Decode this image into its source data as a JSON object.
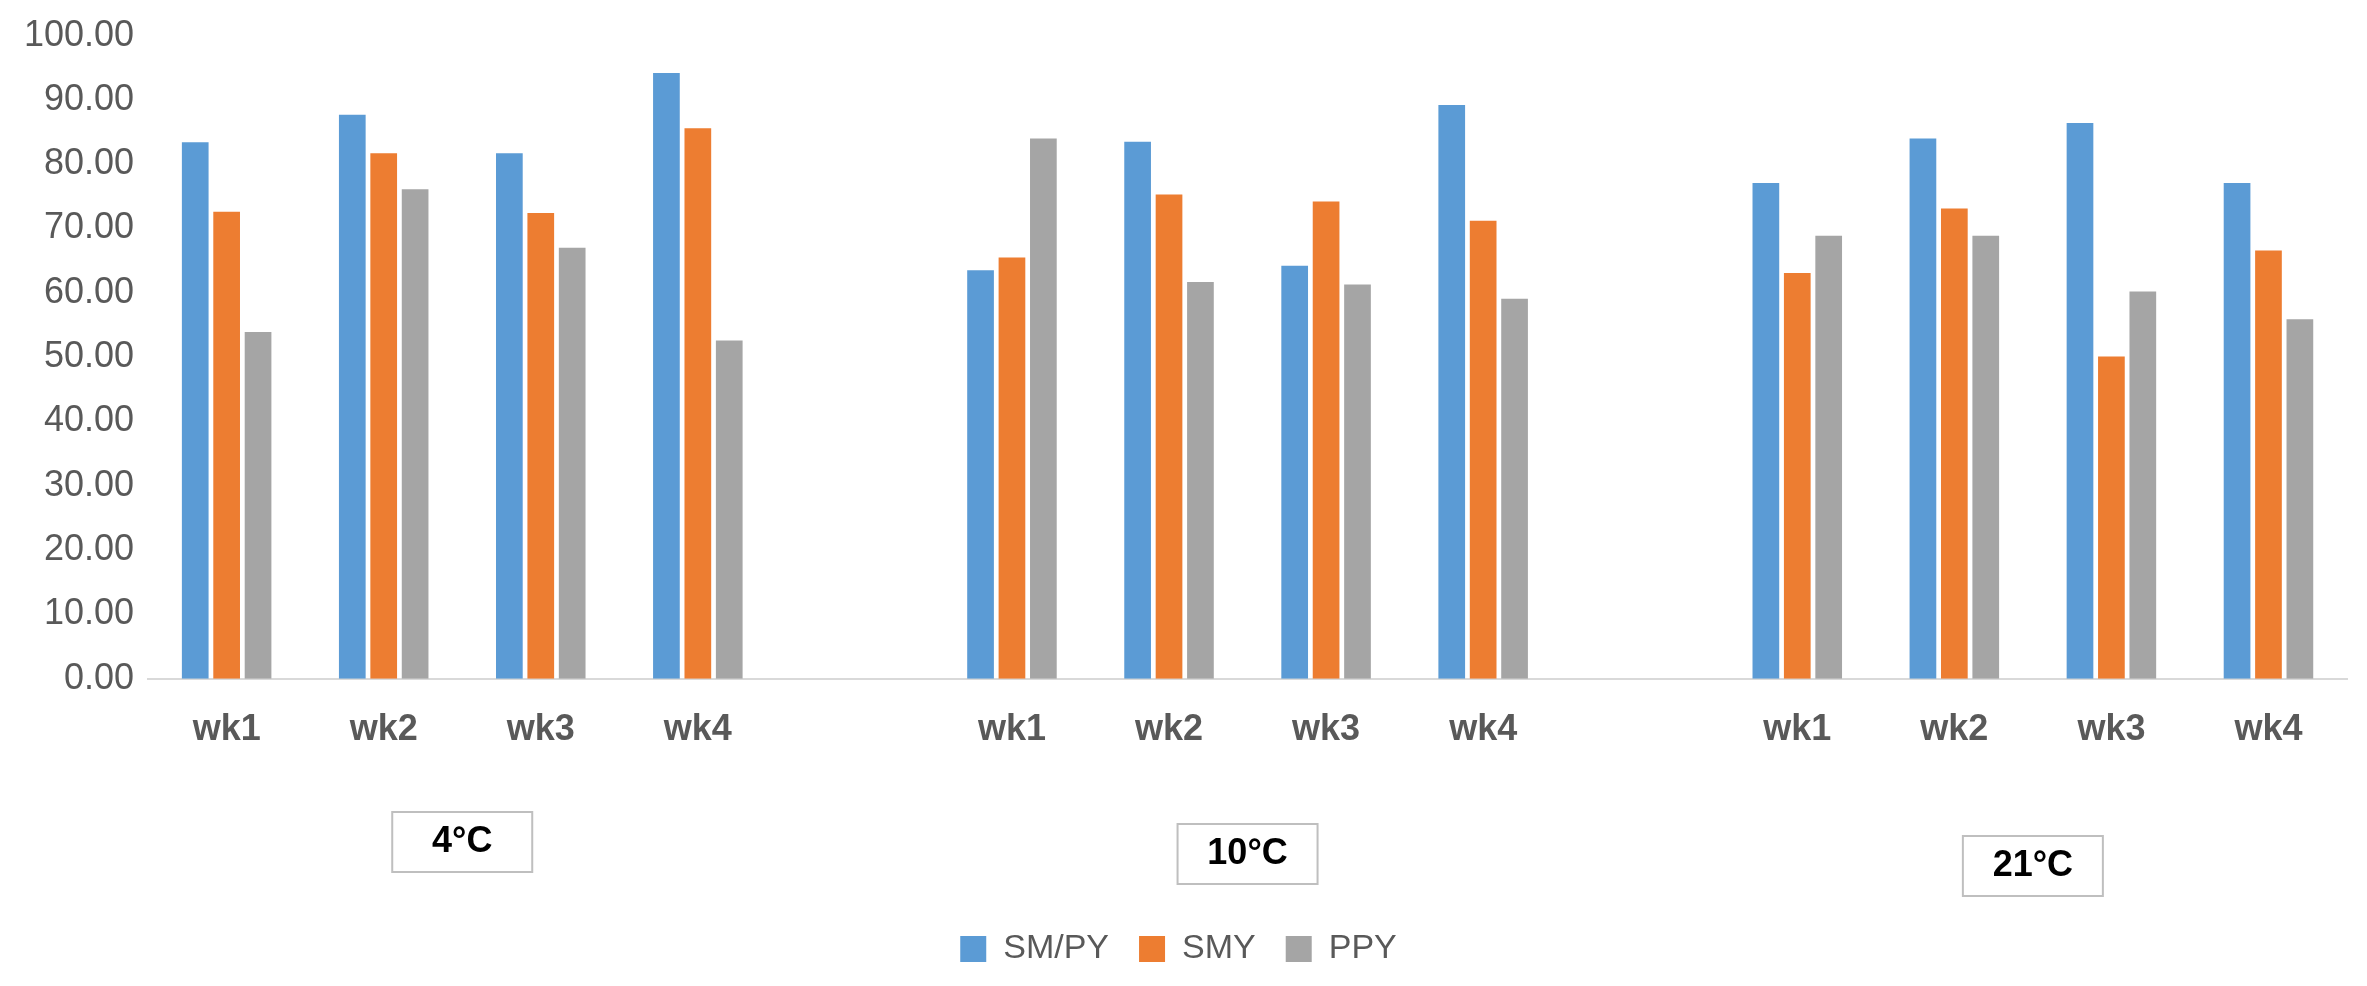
{
  "chart_data": {
    "type": "bar",
    "categories": [
      "wk1",
      "wk2",
      "wk3",
      "wk4",
      null,
      "wk1",
      "wk2",
      "wk3",
      "wk4",
      null,
      "wk1",
      "wk2",
      "wk3",
      "wk4"
    ],
    "series": [
      {
        "name": "SM/PY",
        "color": "#5b9bd5",
        "values": [
          83.4,
          87.7,
          81.7,
          94.2,
          null,
          63.5,
          83.5,
          64.2,
          89.2,
          null,
          77.1,
          84.0,
          86.4,
          77.1
        ]
      },
      {
        "name": "SMY",
        "color": "#ed7d31",
        "values": [
          72.6,
          81.7,
          72.4,
          85.6,
          null,
          65.5,
          75.3,
          74.2,
          71.2,
          null,
          63.1,
          73.1,
          50.1,
          66.6
        ]
      },
      {
        "name": "PPY",
        "color": "#a5a5a5",
        "values": [
          53.9,
          76.1,
          67.0,
          52.6,
          null,
          84.0,
          61.7,
          61.3,
          59.1,
          null,
          68.9,
          68.9,
          60.2,
          55.9
        ]
      }
    ],
    "ylim": [
      0,
      100
    ],
    "yticks": [
      {
        "value": 0,
        "label": "0.00"
      },
      {
        "value": 10,
        "label": "10.00"
      },
      {
        "value": 20,
        "label": "20.00"
      },
      {
        "value": 30,
        "label": "30.00"
      },
      {
        "value": 40,
        "label": "40.00"
      },
      {
        "value": 50,
        "label": "50.00"
      },
      {
        "value": 60,
        "label": "60.00"
      },
      {
        "value": 70,
        "label": "70.00"
      },
      {
        "value": 80,
        "label": "80.00"
      },
      {
        "value": 90,
        "label": "90.00"
      },
      {
        "value": 100,
        "label": "100.00"
      }
    ],
    "grid": false,
    "legend": "bottom",
    "annotations": [
      "4°C",
      "10°C",
      "21°C"
    ]
  }
}
